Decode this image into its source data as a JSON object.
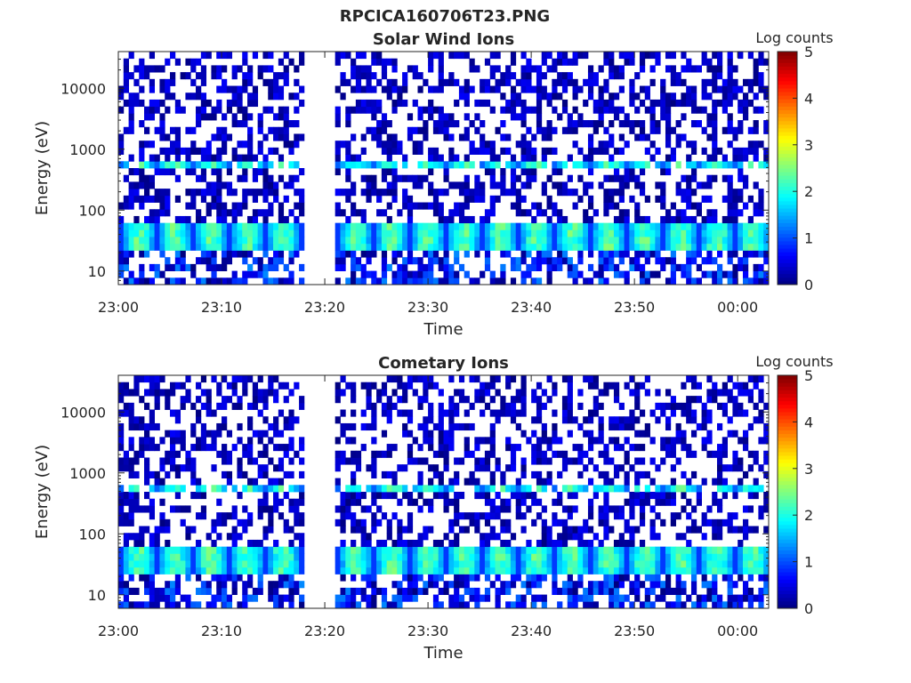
{
  "figure_title": "RPCICA160706T23.PNG",
  "colors": {
    "colormap": "jet",
    "background": "#ffffff",
    "axis": "#262626"
  },
  "chart_data": [
    {
      "type": "heatmap",
      "title": "Solar Wind Ions",
      "xlabel": "Time",
      "ylabel": "Energy (eV)",
      "x_range": [
        "23:00",
        "00:03"
      ],
      "x_ticks": [
        "23:00",
        "23:10",
        "23:20",
        "23:30",
        "23:40",
        "23:50",
        "00:00"
      ],
      "y_scale": "log",
      "y_range": [
        6,
        40000
      ],
      "y_ticks": [
        10,
        100,
        1000,
        10000
      ],
      "y_tick_labels": [
        "10",
        "100",
        "1000",
        "10000"
      ],
      "data_gap": [
        "23:18",
        "23:21"
      ],
      "colorbar": {
        "title": "Log counts",
        "range": [
          0,
          5
        ],
        "ticks": [
          "0",
          "1",
          "2",
          "3",
          "4",
          "5"
        ]
      },
      "features": [
        {
          "energy_band_eV": [
            20,
            70
          ],
          "level_log_counts": [
            1.5,
            2.6
          ]
        },
        {
          "energy_band_eV": [
            500,
            700
          ],
          "level_log_counts": [
            1.5,
            2.5
          ]
        },
        {
          "energy_band_eV": [
            6,
            40000
          ],
          "level_log_counts": [
            0,
            1
          ]
        }
      ]
    },
    {
      "type": "heatmap",
      "title": "Cometary Ions",
      "xlabel": "Time",
      "ylabel": "Energy (eV)",
      "x_range": [
        "23:00",
        "00:03"
      ],
      "x_ticks": [
        "23:00",
        "23:10",
        "23:20",
        "23:30",
        "23:40",
        "23:50",
        "00:00"
      ],
      "y_scale": "log",
      "y_range": [
        6,
        40000
      ],
      "y_ticks": [
        10,
        100,
        1000,
        10000
      ],
      "y_tick_labels": [
        "10",
        "100",
        "1000",
        "10000"
      ],
      "data_gap": [
        "23:18",
        "23:21"
      ],
      "colorbar": {
        "title": "Log counts",
        "range": [
          0,
          5
        ],
        "ticks": [
          "0",
          "1",
          "2",
          "3",
          "4",
          "5"
        ]
      },
      "features": [
        {
          "energy_band_eV": [
            20,
            70
          ],
          "level_log_counts": [
            1.5,
            2.6
          ]
        },
        {
          "energy_band_eV": [
            500,
            700
          ],
          "level_log_counts": [
            1.5,
            2.5
          ]
        },
        {
          "energy_band_eV": [
            6,
            40000
          ],
          "level_log_counts": [
            0,
            1
          ]
        }
      ]
    }
  ]
}
